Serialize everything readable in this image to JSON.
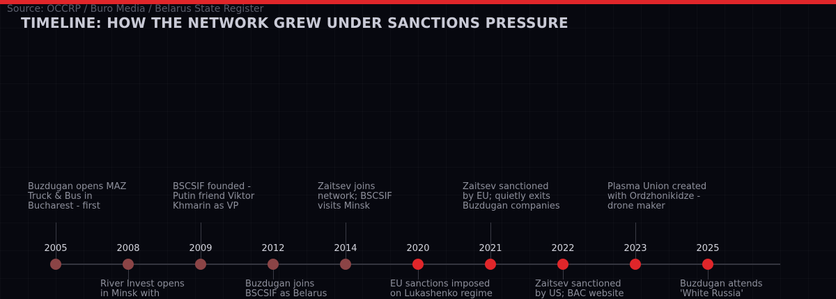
{
  "header": {
    "source": "Source: OCCRP / Buro Media / Belarus State Register",
    "title": "TIMELINE: HOW THE NETWORK GREW UNDER SANCTIONS PRESSURE"
  },
  "colors": {
    "accent": "#e0262a",
    "early_event": "#8b4446",
    "axis": "#34353f"
  },
  "events": [
    {
      "year": "2005",
      "text": "Buzdugan opens MAZ\nTruck & Bus in\nBucharest - first",
      "position": "top",
      "phase": "early"
    },
    {
      "year": "2008",
      "text": "River Invest opens\nin Minsk with",
      "position": "bottom",
      "phase": "early"
    },
    {
      "year": "2009",
      "text": "BSCSIF founded -\nPutin friend Viktor\nKhmarin as VP",
      "position": "top",
      "phase": "early"
    },
    {
      "year": "2012",
      "text": "Buzdugan joins\nBSCSIF as Belarus",
      "position": "bottom",
      "phase": "early"
    },
    {
      "year": "2014",
      "text": "Zaitsev joins\nnetwork; BSCSIF\nvisits Minsk",
      "position": "top",
      "phase": "early"
    },
    {
      "year": "2020",
      "text": "EU sanctions imposed\non Lukashenko regime",
      "position": "bottom",
      "phase": "sanctions"
    },
    {
      "year": "2021",
      "text": "Zaitsev sanctioned\nby EU; quietly exits\nBuzdugan companies",
      "position": "top",
      "phase": "sanctions"
    },
    {
      "year": "2022",
      "text": "Zaitsev sanctioned\nby US; BAC website",
      "position": "bottom",
      "phase": "sanctions"
    },
    {
      "year": "2023",
      "text": "Plasma Union created\nwith Ordzhonikidze -\ndrone maker",
      "position": "top",
      "phase": "sanctions"
    },
    {
      "year": "2025",
      "text": "Buzdugan attends\n'White Russia'",
      "position": "bottom",
      "phase": "sanctions"
    }
  ]
}
